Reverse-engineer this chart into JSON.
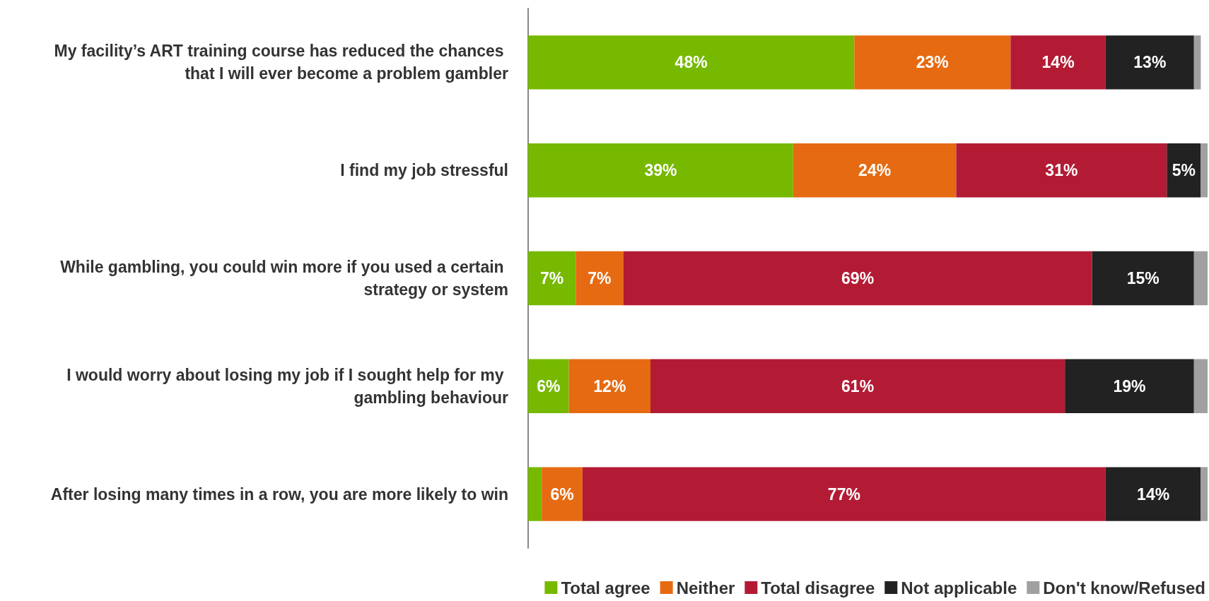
{
  "chart_data": {
    "type": "bar",
    "orientation": "horizontal",
    "stacked": true,
    "legend": "bottom right",
    "categories": [
      "My facility’s ART training course has reduced the chances that I will ever become a problem gambler",
      "I find my job stressful",
      "While gambling, you could win more if you used a certain strategy or system",
      "I would worry about losing my job if I sought help for my gambling behaviour",
      "After losing many times in a row, you are more likely to win"
    ],
    "series": [
      {
        "name": "Total agree",
        "color": "#76b900",
        "values": [
          48,
          39,
          7,
          6,
          2
        ],
        "value_labels": [
          "48%",
          "39%",
          "7%",
          "6%",
          null
        ]
      },
      {
        "name": "Neither",
        "color": "#e66a12",
        "values": [
          23,
          24,
          7,
          12,
          6
        ],
        "value_labels": [
          "23%",
          "24%",
          "7%",
          "12%",
          "6%"
        ]
      },
      {
        "name": "Total disagree",
        "color": "#b31b34",
        "values": [
          14,
          31,
          69,
          61,
          77
        ],
        "value_labels": [
          "14%",
          "31%",
          "69%",
          "61%",
          "77%"
        ]
      },
      {
        "name": "Not applicable",
        "color": "#222222",
        "values": [
          13,
          5,
          15,
          19,
          14
        ],
        "value_labels": [
          "13%",
          "5%",
          "15%",
          "19%",
          "14%"
        ]
      },
      {
        "name": "Don't know/Refused",
        "color": "#a0a0a0",
        "values": [
          1,
          1,
          2,
          2,
          1
        ],
        "value_labels": [
          null,
          null,
          null,
          null,
          null
        ]
      }
    ]
  }
}
